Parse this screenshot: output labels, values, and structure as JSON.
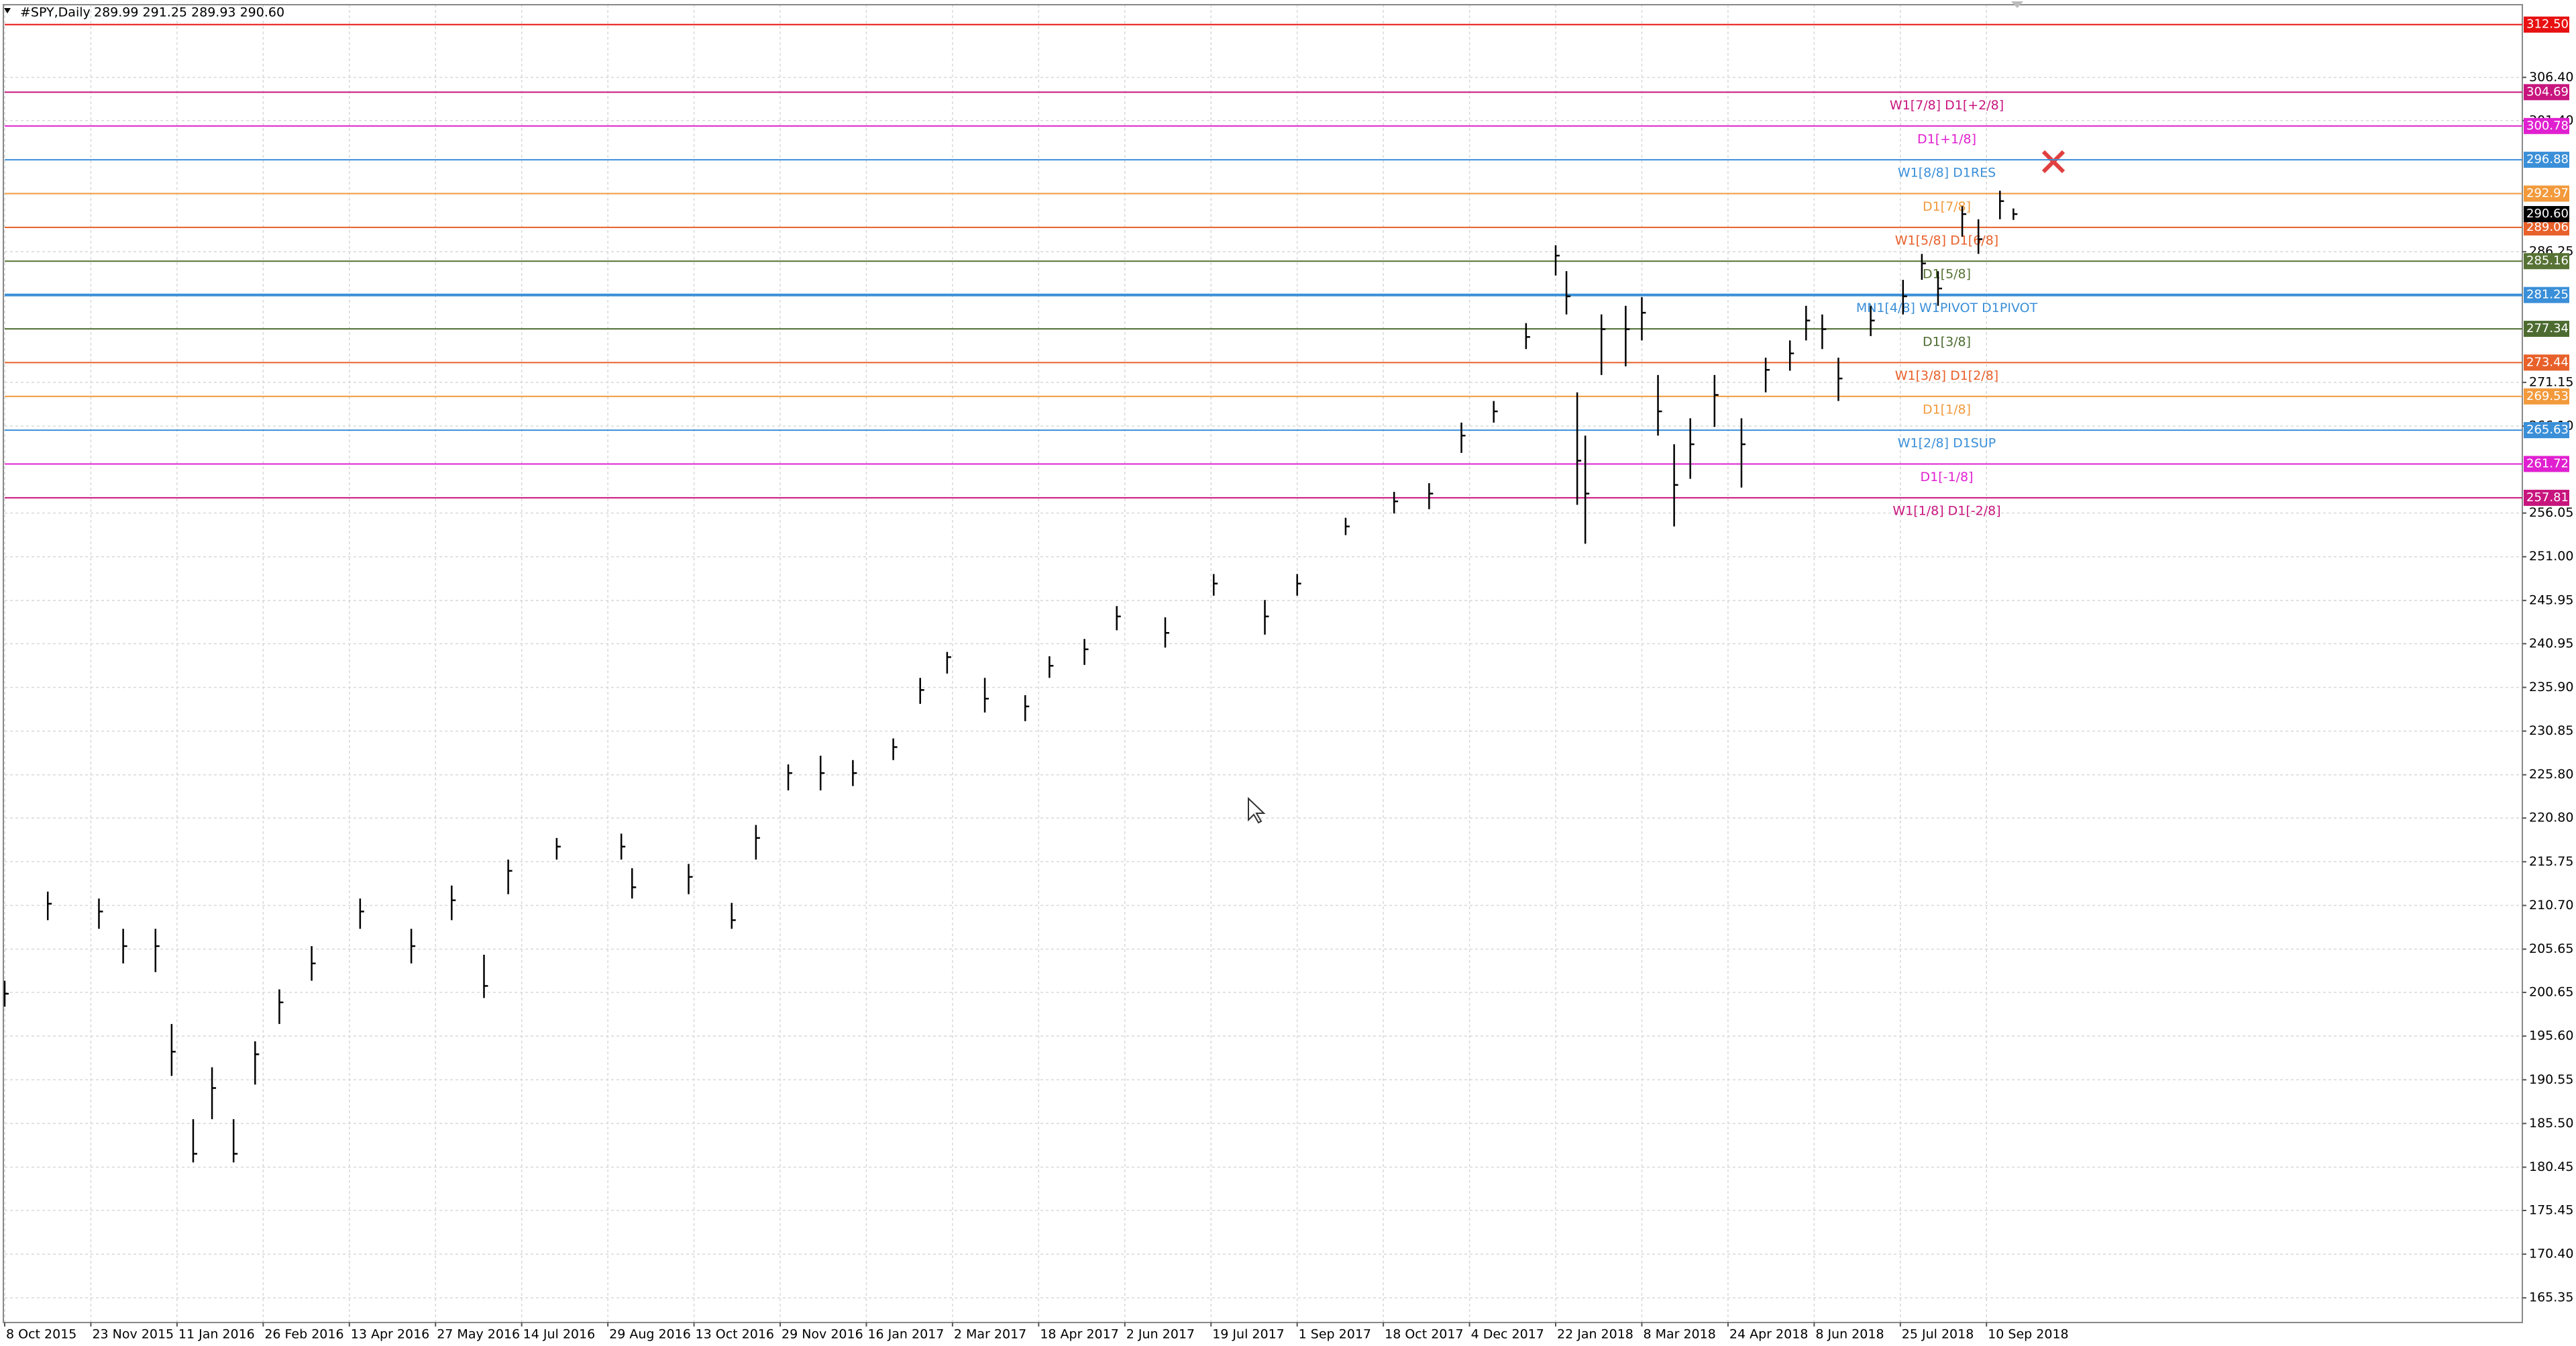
{
  "chart_data": {
    "type": "hlc",
    "title": "#SPY,Daily",
    "header_prices": "289.99 291.25 289.93 290.60",
    "xlim": [
      0,
      935
    ],
    "xticks": [
      {
        "value": 0,
        "label": "8 Oct 2015"
      },
      {
        "value": 32,
        "label": "23 Nov 2015"
      },
      {
        "value": 64,
        "label": "11 Jan 2016"
      },
      {
        "value": 96,
        "label": "26 Feb 2016"
      },
      {
        "value": 128,
        "label": "13 Apr 2016"
      },
      {
        "value": 160,
        "label": "27 May 2016"
      },
      {
        "value": 192,
        "label": "14 Jul 2016"
      },
      {
        "value": 224,
        "label": "29 Aug 2016"
      },
      {
        "value": 256,
        "label": "13 Oct 2016"
      },
      {
        "value": 288,
        "label": "29 Nov 2016"
      },
      {
        "value": 320,
        "label": "16 Jan 2017"
      },
      {
        "value": 352,
        "label": "2 Mar 2017"
      },
      {
        "value": 384,
        "label": "18 Apr 2017"
      },
      {
        "value": 416,
        "label": "2 Jun 2017"
      },
      {
        "value": 448,
        "label": "19 Jul 2017"
      },
      {
        "value": 480,
        "label": "1 Sep 2017"
      },
      {
        "value": 512,
        "label": "18 Oct 2017"
      },
      {
        "value": 544,
        "label": "4 Dec 2017"
      },
      {
        "value": 576,
        "label": "22 Jan 2018"
      },
      {
        "value": 608,
        "label": "8 Mar 2018"
      },
      {
        "value": 640,
        "label": "24 Apr 2018"
      },
      {
        "value": 672,
        "label": "8 Jun 2018"
      },
      {
        "value": 704,
        "label": "25 Jul 2018"
      },
      {
        "value": 736,
        "label": "10 Sep 2018"
      }
    ],
    "ylim": [
      162.5,
      314.8
    ],
    "yticks": [
      {
        "value": 306.4,
        "label": "306.40"
      },
      {
        "value": 301.4,
        "label": "301.40"
      },
      {
        "value": 286.25,
        "label": "286.25"
      },
      {
        "value": 271.15,
        "label": "271.15"
      },
      {
        "value": 266.1,
        "label": "266.10"
      },
      {
        "value": 256.05,
        "label": "256.05"
      },
      {
        "value": 251,
        "label": "251.00"
      },
      {
        "value": 245.95,
        "label": "245.95"
      },
      {
        "value": 240.95,
        "label": "240.95"
      },
      {
        "value": 235.9,
        "label": "235.90"
      },
      {
        "value": 230.85,
        "label": "230.85"
      },
      {
        "value": 225.8,
        "label": "225.80"
      },
      {
        "value": 220.8,
        "label": "220.80"
      },
      {
        "value": 215.75,
        "label": "215.75"
      },
      {
        "value": 210.7,
        "label": "210.70"
      },
      {
        "value": 205.65,
        "label": "205.65"
      },
      {
        "value": 200.65,
        "label": "200.65"
      },
      {
        "value": 195.6,
        "label": "195.60"
      },
      {
        "value": 190.55,
        "label": "190.55"
      },
      {
        "value": 185.5,
        "label": "185.50"
      },
      {
        "value": 180.45,
        "label": "180.45"
      },
      {
        "value": 175.45,
        "label": "175.45"
      },
      {
        "value": 170.4,
        "label": "170.40"
      },
      {
        "value": 165.35,
        "label": "165.35"
      }
    ],
    "grid": true,
    "color": "#000000",
    "x": [
      0,
      16,
      35,
      44,
      56,
      62,
      70,
      77,
      85,
      93,
      102,
      114,
      132,
      151,
      166,
      178,
      187,
      205,
      229,
      233,
      254,
      270,
      279,
      291,
      303,
      315,
      330,
      340,
      350,
      364,
      379,
      388,
      401,
      413,
      431,
      449,
      468,
      480,
      498,
      516,
      529,
      541,
      553,
      565,
      576,
      580,
      584,
      587,
      593,
      602,
      608,
      614,
      620,
      626,
      635,
      645,
      654,
      663,
      669,
      675,
      681,
      693,
      705,
      712,
      718,
      727,
      733,
      741,
      746
    ],
    "high": [
      202,
      212.3,
      211.5,
      208,
      208,
      197,
      186,
      192,
      186,
      195,
      201,
      206,
      211.5,
      208,
      213,
      205,
      216,
      218.5,
      219,
      215,
      215.5,
      211,
      220,
      227,
      228,
      227.5,
      230,
      237,
      240,
      237,
      235,
      239.5,
      241.5,
      245.3,
      244,
      249,
      246,
      249,
      255.5,
      258.5,
      259.5,
      266.5,
      269,
      278,
      287,
      284,
      270,
      265,
      279,
      280,
      281,
      272,
      264,
      267,
      272,
      267,
      274,
      276,
      280,
      279,
      274,
      280,
      283,
      286,
      284,
      291.5,
      290,
      293.3,
      291.25
    ],
    "low": [
      199,
      209,
      208,
      204,
      203,
      191,
      181,
      186,
      181,
      190,
      197,
      202,
      208,
      204,
      209,
      200,
      212,
      216,
      216,
      211.5,
      212,
      208,
      216,
      224,
      224,
      224.5,
      227.5,
      234,
      237.5,
      233,
      232,
      237,
      238.5,
      242.5,
      240.5,
      246.5,
      242,
      246.5,
      253.5,
      256,
      256.5,
      263,
      266.5,
      275,
      283.5,
      279,
      257,
      252.5,
      272,
      273,
      276,
      265,
      254.5,
      260,
      266,
      259,
      270,
      272.5,
      276,
      275,
      269,
      276.5,
      279,
      283,
      280,
      288,
      286,
      290,
      289.93
    ],
    "close": [
      200.5,
      210.9,
      210,
      206,
      206,
      193.8,
      182,
      189.6,
      182,
      193.5,
      199.5,
      204,
      210,
      206,
      211.3,
      201.4,
      214.7,
      217.5,
      217.5,
      212.8,
      214,
      209,
      218.5,
      226,
      226,
      226,
      229,
      235.6,
      239.4,
      234.6,
      233.7,
      238.4,
      240.3,
      244.1,
      242.2,
      247.9,
      244.1,
      247.9,
      254.5,
      257.4,
      258.3,
      265,
      267.8,
      276.4,
      285.8,
      281.1,
      262.1,
      258.3,
      277.3,
      277.3,
      279.2,
      267.8,
      259.3,
      264,
      269.7,
      264,
      272.6,
      274.5,
      278.3,
      277.3,
      271.6,
      278.3,
      281.1,
      284.9,
      282,
      290.6,
      287.7,
      292.1,
      290.6
    ],
    "levels": [
      {
        "price": 312.5,
        "price_label": "312.50",
        "color": "#e81010"
      },
      {
        "label": "W1[7/8] D1[+2/8]",
        "price": 304.69,
        "color": "#c8157e"
      },
      {
        "label": "D1[+1/8]",
        "price": 300.78,
        "color": "#e020d0"
      },
      {
        "label": "W1[8/8] D1RES",
        "price": 296.88,
        "color": "#3a8fd8"
      },
      {
        "label": "D1[7/8]",
        "price": 292.97,
        "color": "#f29a3c"
      },
      {
        "label": "W1[5/8] D1[6/8]",
        "price": 289.06,
        "color": "#e8602a"
      },
      {
        "label": "D1[5/8]",
        "price": 285.16,
        "color": "#567234"
      },
      {
        "label": "MN1[4/8] W1PIVOT D1PIVOT",
        "price": 281.25,
        "color": "#3a8fd8"
      },
      {
        "label": "D1[3/8]",
        "price": 277.34,
        "color": "#4d6b30"
      },
      {
        "label": "W1[3/8] D1[2/8]",
        "price": 273.44,
        "color": "#e8602a"
      },
      {
        "label": "D1[1/8]",
        "price": 269.53,
        "color": "#f29a3c"
      },
      {
        "label": "W1[2/8] D1SUP",
        "price": 265.63,
        "color": "#3a8fd8"
      },
      {
        "label": "D1[-1/8]",
        "price": 261.72,
        "color": "#e020d0"
      },
      {
        "label": "W1[1/8] D1[-2/8]",
        "price": 257.81,
        "color": "#c8157e"
      }
    ],
    "current_price": {
      "value": 290.6,
      "label": "290.60",
      "color": "#000000"
    }
  }
}
